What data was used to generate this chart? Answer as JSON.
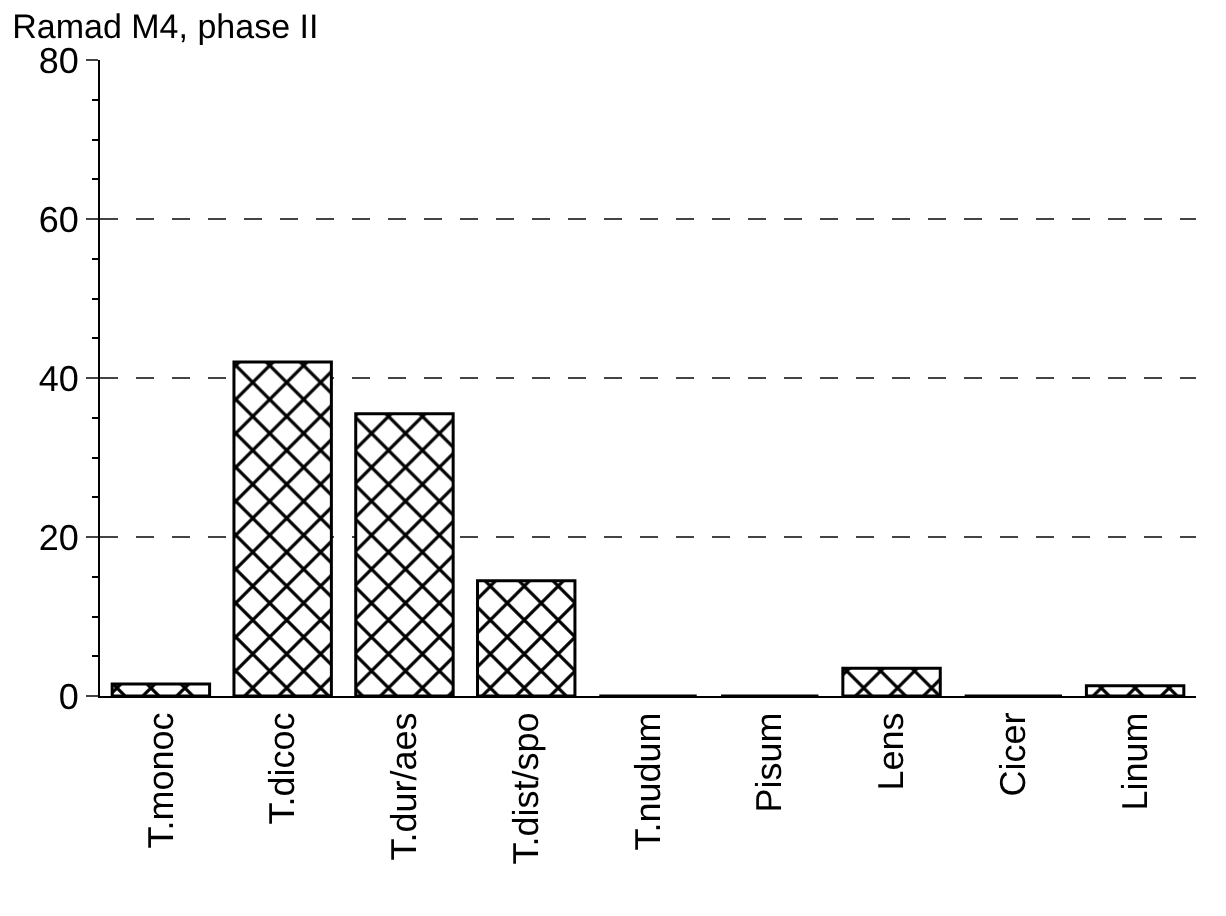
{
  "chart_data": {
    "type": "bar",
    "title": "Ramad M4, phase II",
    "categories": [
      "T.monoc",
      "T.dicoc",
      "T.dur/aes",
      "T.dist/spo",
      "T.nudum",
      "Pisum",
      "Lens",
      "Cicer",
      "Linum"
    ],
    "values": [
      1.5,
      42,
      35.5,
      14.5,
      0,
      0,
      3.5,
      0,
      1.3
    ],
    "color": "#000000",
    "ylim": [
      0,
      80
    ],
    "yticks": [
      0,
      20,
      40,
      60,
      80
    ],
    "grid": "y"
  }
}
